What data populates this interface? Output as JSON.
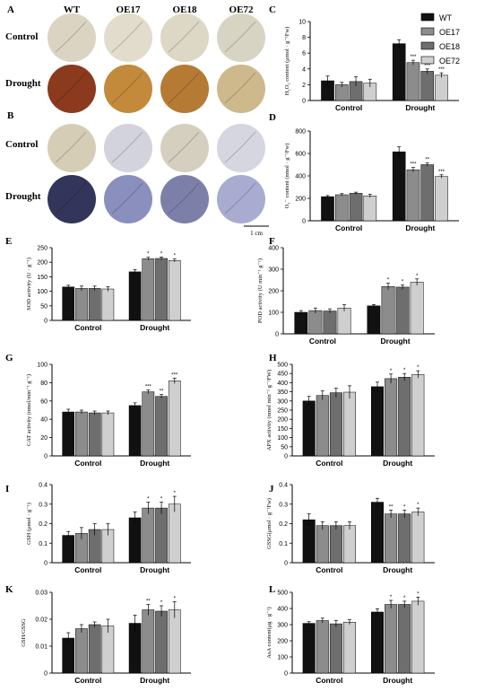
{
  "figure": {
    "panel_letters": [
      "A",
      "B",
      "C",
      "D",
      "E",
      "F",
      "G",
      "H",
      "I",
      "J",
      "K",
      "L"
    ],
    "photo_columns": [
      "WT",
      "OE17",
      "OE18",
      "OE72"
    ],
    "photo_rows": [
      "Control",
      "Drought"
    ],
    "scale_bar_label": "1 cm"
  },
  "legend": {
    "entries": [
      {
        "name": "WT",
        "color": "#111111"
      },
      {
        "name": "OE17",
        "color": "#8c8c8c"
      },
      {
        "name": "OE18",
        "color": "#6e6e6e"
      },
      {
        "name": "OE72",
        "color": "#cfcfcf"
      }
    ]
  },
  "photos": {
    "A": {
      "control_colors": [
        "#dcd4c3",
        "#e2dccc",
        "#ddd7c6",
        "#d8d4c3"
      ],
      "drought_colors": [
        "#8b3a1e",
        "#c28a3a",
        "#b57a34",
        "#cdb98c"
      ]
    },
    "B": {
      "control_colors": [
        "#d5cdb6",
        "#d2d3dd",
        "#d5cfbf",
        "#d6d6e0"
      ],
      "drought_colors": [
        "#33365a",
        "#8a8fbe",
        "#7c80a8",
        "#a9acd0"
      ]
    }
  },
  "chart_data": [
    {
      "panel": "C",
      "type": "bar",
      "categories": [
        "Control",
        "Drought"
      ],
      "series_names": [
        "WT",
        "OE17",
        "OE18",
        "OE72"
      ],
      "values": [
        [
          2.5,
          2.0,
          2.4,
          2.2
        ],
        [
          7.2,
          4.8,
          3.7,
          3.2
        ]
      ],
      "errors": [
        [
          0.6,
          0.3,
          0.6,
          0.5
        ],
        [
          0.5,
          0.3,
          0.3,
          0.3
        ]
      ],
      "marks": [
        [
          "",
          "",
          "",
          ""
        ],
        [
          "",
          "***",
          "***",
          "***"
        ]
      ],
      "ylim": [
        0,
        10
      ],
      "yticks": [
        0,
        2,
        4,
        6,
        8,
        10
      ],
      "ylabel": "H₂O₂ content (μmol · g⁻¹Fw)"
    },
    {
      "panel": "D",
      "type": "bar",
      "categories": [
        "Control",
        "Drought"
      ],
      "series_names": [
        "WT",
        "OE17",
        "OE18",
        "OE72"
      ],
      "values": [
        [
          215,
          232,
          245,
          222
        ],
        [
          615,
          455,
          500,
          395
        ]
      ],
      "errors": [
        [
          10,
          10,
          10,
          15
        ],
        [
          45,
          20,
          15,
          15
        ]
      ],
      "marks": [
        [
          "",
          "",
          "",
          ""
        ],
        [
          "",
          "***",
          "**",
          "***"
        ]
      ],
      "ylim": [
        0,
        800
      ],
      "yticks": [
        0,
        200,
        400,
        600,
        800
      ],
      "ylabel": "O₂⁻ content (nmol · g⁻¹Fw)"
    },
    {
      "panel": "E",
      "type": "bar",
      "categories": [
        "Control",
        "Drought"
      ],
      "series_names": [
        "WT",
        "OE17",
        "OE18",
        "OE72"
      ],
      "values": [
        [
          115,
          110,
          110,
          108
        ],
        [
          167,
          212,
          213,
          206
        ]
      ],
      "errors": [
        [
          6,
          8,
          8,
          8
        ],
        [
          8,
          5,
          5,
          5
        ]
      ],
      "marks": [
        [
          "",
          "",
          "",
          ""
        ],
        [
          "",
          "*",
          "*",
          "*"
        ]
      ],
      "ylim": [
        0,
        250
      ],
      "yticks": [
        0,
        50,
        100,
        150,
        200,
        250
      ],
      "ylabel": "SOD activity (U · g⁻¹)"
    },
    {
      "panel": "F",
      "type": "bar",
      "categories": [
        "Control",
        "Drought"
      ],
      "series_names": [
        "WT",
        "OE17",
        "OE18",
        "OE72"
      ],
      "values": [
        [
          100,
          108,
          106,
          120
        ],
        [
          130,
          220,
          217,
          240
        ]
      ],
      "errors": [
        [
          8,
          12,
          10,
          15
        ],
        [
          6,
          15,
          10,
          15
        ]
      ],
      "marks": [
        [
          "",
          "",
          "",
          ""
        ],
        [
          "",
          "*",
          "*",
          "*"
        ]
      ],
      "ylim": [
        0,
        400
      ],
      "yticks": [
        0,
        100,
        200,
        300,
        400
      ],
      "ylabel": "POD activity (U min⁻¹ g⁻¹)"
    },
    {
      "panel": "G",
      "type": "bar",
      "categories": [
        "Control",
        "Drought"
      ],
      "series_names": [
        "WT",
        "OE17",
        "OE18",
        "OE72"
      ],
      "values": [
        [
          48,
          48,
          47,
          47
        ],
        [
          55,
          70,
          65,
          82
        ]
      ],
      "errors": [
        [
          3,
          2,
          2,
          2
        ],
        [
          3,
          2,
          2,
          3
        ]
      ],
      "marks": [
        [
          "",
          "",
          "",
          ""
        ],
        [
          "",
          "***",
          "**",
          "***"
        ]
      ],
      "ylim": [
        0,
        100
      ],
      "yticks": [
        0,
        20,
        40,
        60,
        80,
        100
      ],
      "ylabel": "CAT activity (nmol/min⁻¹ g⁻¹)"
    },
    {
      "panel": "H",
      "type": "bar",
      "categories": [
        "Control",
        "Drought"
      ],
      "series_names": [
        "WT",
        "OE17",
        "OE18",
        "OE72"
      ],
      "values": [
        [
          300,
          330,
          345,
          348
        ],
        [
          378,
          422,
          430,
          445
        ]
      ],
      "errors": [
        [
          25,
          25,
          25,
          35
        ],
        [
          25,
          25,
          20,
          20
        ]
      ],
      "marks": [
        [
          "",
          "",
          "",
          ""
        ],
        [
          "",
          "*",
          "*",
          "*"
        ]
      ],
      "ylim": [
        0,
        500
      ],
      "yticks": [
        0,
        50,
        100,
        150,
        200,
        250,
        300,
        350,
        400,
        450,
        500
      ],
      "ylabel": "APX activity (nmol min⁻¹ g⁻¹FW)"
    },
    {
      "panel": "I",
      "type": "bar",
      "categories": [
        "Control",
        "Drought"
      ],
      "series_names": [
        "WT",
        "OE17",
        "OE18",
        "OE72"
      ],
      "values": [
        [
          0.14,
          0.15,
          0.17,
          0.17
        ],
        [
          0.23,
          0.28,
          0.28,
          0.3
        ]
      ],
      "errors": [
        [
          0.02,
          0.03,
          0.03,
          0.03
        ],
        [
          0.03,
          0.03,
          0.03,
          0.04
        ]
      ],
      "marks": [
        [
          "",
          "",
          "",
          ""
        ],
        [
          "",
          "*",
          "*",
          "*"
        ]
      ],
      "ylim": [
        0,
        0.4
      ],
      "yticks": [
        0,
        0.1,
        0.2,
        0.3,
        0.4
      ],
      "ylabel": "GSH (μmol · g⁻¹)"
    },
    {
      "panel": "J",
      "type": "bar",
      "categories": [
        "Control",
        "Drought"
      ],
      "series_names": [
        "WT",
        "OE17",
        "OE18",
        "OE72"
      ],
      "values": [
        [
          0.22,
          0.19,
          0.19,
          0.19
        ],
        [
          0.31,
          0.25,
          0.25,
          0.26
        ]
      ],
      "errors": [
        [
          0.03,
          0.02,
          0.02,
          0.02
        ],
        [
          0.02,
          0.02,
          0.02,
          0.02
        ]
      ],
      "marks": [
        [
          "",
          "",
          "",
          ""
        ],
        [
          "",
          "**",
          "*",
          "*"
        ]
      ],
      "ylim": [
        0,
        0.4
      ],
      "yticks": [
        0,
        0.1,
        0.2,
        0.3,
        0.4
      ],
      "ylabel": "GSSG(μmol · g⁻¹Fw)"
    },
    {
      "panel": "K",
      "type": "bar",
      "categories": [
        "Control",
        "Drought"
      ],
      "series_names": [
        "WT",
        "OE17",
        "OE18",
        "OE72"
      ],
      "values": [
        [
          0.013,
          0.0165,
          0.018,
          0.0175
        ],
        [
          0.0185,
          0.0235,
          0.023,
          0.0235
        ]
      ],
      "errors": [
        [
          0.002,
          0.0015,
          0.001,
          0.0025
        ],
        [
          0.003,
          0.002,
          0.002,
          0.003
        ]
      ],
      "marks": [
        [
          "",
          "",
          "",
          ""
        ],
        [
          "",
          "**",
          "*",
          "*"
        ]
      ],
      "ylim": [
        0,
        0.03
      ],
      "yticks": [
        0,
        0.01,
        0.02,
        0.03
      ],
      "ylabel": "GSH/GSSG"
    },
    {
      "panel": "L",
      "type": "bar",
      "categories": [
        "Control",
        "Drought"
      ],
      "series_names": [
        "WT",
        "OE17",
        "OE18",
        "OE72"
      ],
      "values": [
        [
          308,
          325,
          305,
          315
        ],
        [
          378,
          425,
          425,
          445
        ]
      ],
      "errors": [
        [
          10,
          15,
          20,
          15
        ],
        [
          20,
          25,
          20,
          25
        ]
      ],
      "marks": [
        [
          "",
          "",
          "",
          ""
        ],
        [
          "",
          "*",
          "*",
          "*"
        ]
      ],
      "ylim": [
        0,
        500
      ],
      "yticks": [
        0,
        100,
        200,
        300,
        400,
        500
      ],
      "ylabel": "AsA content(μg · g⁻¹)"
    }
  ]
}
